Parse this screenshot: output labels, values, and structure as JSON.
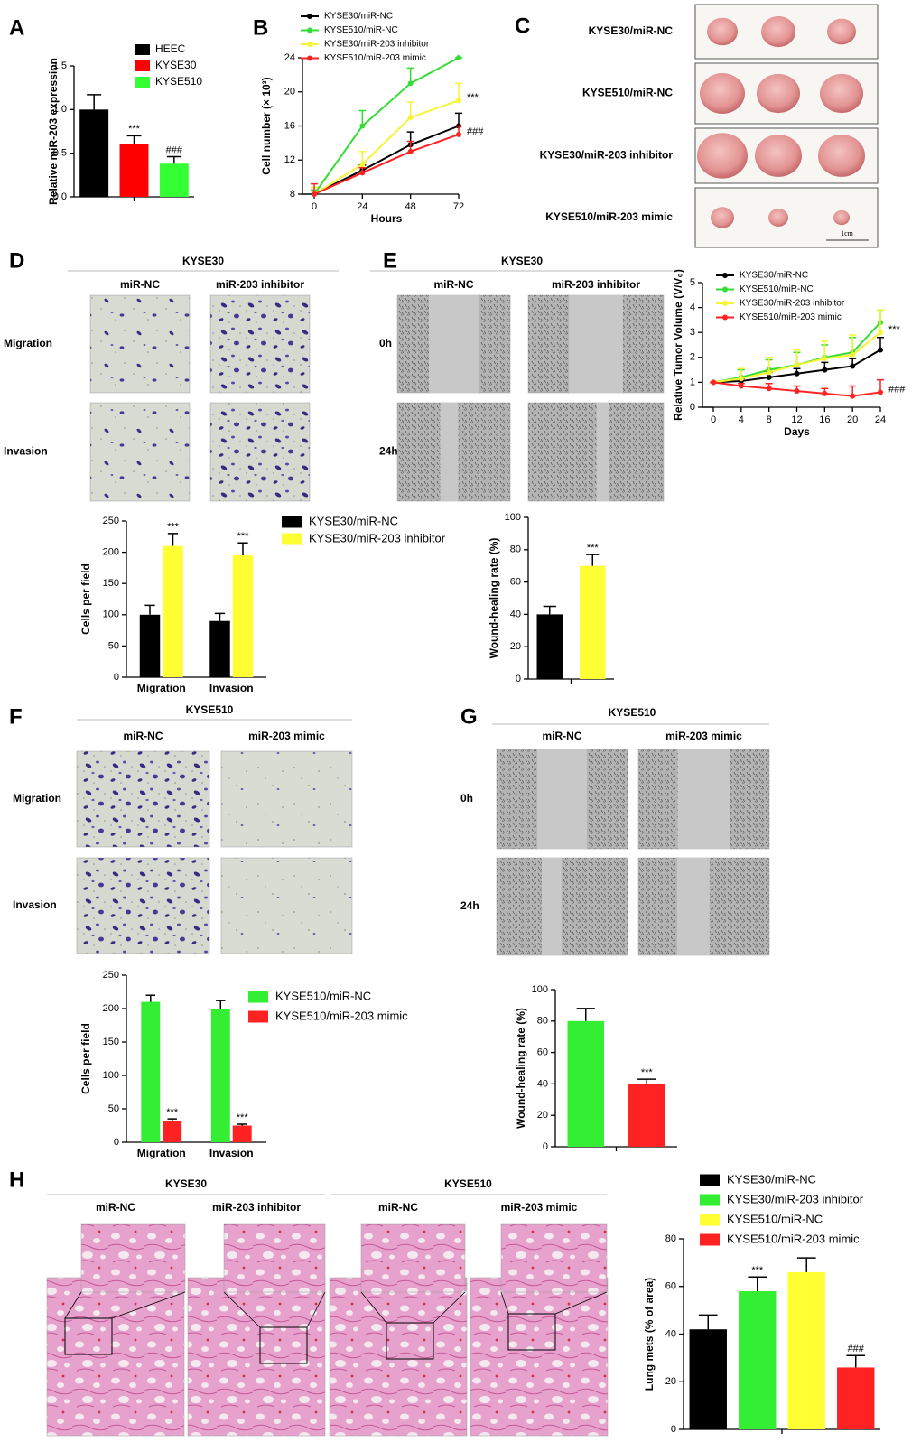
{
  "image_panels": {
    "C": {
      "panel": "C",
      "rows": [
        "KYSE30/miR-NC",
        "KYSE510/miR-NC",
        "KYSE30/miR-203 inhibitor",
        "KYSE510/miR-203 mimic"
      ],
      "scale": "1cm"
    },
    "D": {
      "panel": "D",
      "title": "KYSE30",
      "columns": [
        "miR-NC",
        "miR-203 inhibitor"
      ],
      "rows": [
        "Migration",
        "Invasion"
      ]
    },
    "E": {
      "panel": "E",
      "title": "KYSE30",
      "columns": [
        "miR-NC",
        "miR-203 inhibitor"
      ],
      "rows": [
        "0h",
        "24h"
      ]
    },
    "F": {
      "panel": "F",
      "title": "KYSE510",
      "columns": [
        "miR-NC",
        "miR-203 mimic"
      ],
      "rows": [
        "Migration",
        "Invasion"
      ]
    },
    "G": {
      "panel": "G",
      "title": "KYSE510",
      "columns": [
        "miR-NC",
        "miR-203 mimic"
      ],
      "rows": [
        "0h",
        "24h"
      ]
    },
    "H": {
      "panel": "H",
      "groups": [
        {
          "title": "KYSE30",
          "columns": [
            "miR-NC",
            "miR-203 inhibitor"
          ]
        },
        {
          "title": "KYSE510",
          "columns": [
            "miR-NC",
            "miR-203 mimic"
          ]
        }
      ]
    }
  },
  "chart_data": [
    {
      "type": "bar",
      "panel": "A",
      "ylabel": "Relative miR-203 expression",
      "categories": [
        "HEEC",
        "KYSE30",
        "KYSE510"
      ],
      "values": [
        1.0,
        0.6,
        0.38
      ],
      "errors": [
        0.17,
        0.1,
        0.08
      ],
      "colors": [
        "#000000",
        "#ff0000",
        "#33ff33"
      ],
      "annotations": [
        null,
        "***",
        "###"
      ],
      "legend": true,
      "ylim": [
        0,
        1.5
      ],
      "yticks": [
        {
          "value": 0,
          "label": "0.0"
        },
        0.5,
        {
          "value": 1,
          "label": "1.0"
        },
        1.5
      ]
    },
    {
      "type": "line",
      "panel": "B",
      "xlabel": "Hours",
      "ylabel": "Cell number (× 10³)",
      "x": [
        0,
        24,
        48,
        72
      ],
      "xlim": [
        0,
        72
      ],
      "xticks": [
        0,
        24,
        48,
        72
      ],
      "ylim": [
        8,
        24
      ],
      "yticks": [
        8,
        12,
        16,
        20,
        24
      ],
      "legend": true,
      "series": [
        {
          "name": "KYSE30/miR-NC",
          "color": "#000000",
          "values": [
            8,
            10.8,
            13.8,
            16
          ],
          "errors": [
            0.5,
            0.6,
            1.5,
            1.5
          ]
        },
        {
          "name": "KYSE510/miR-NC",
          "color": "#33dd33",
          "values": [
            8,
            16,
            21,
            24
          ],
          "errors": [
            0.5,
            1.8,
            1.8,
            0
          ]
        },
        {
          "name": "KYSE30/miR-203 inhibitor",
          "color": "#f5f534",
          "values": [
            8,
            11.5,
            17,
            19
          ],
          "errors": [
            0.8,
            1.5,
            1.8,
            2
          ],
          "annotation": "***"
        },
        {
          "name": "KYSE510/miR-203 mimic",
          "color": "#ff2222",
          "values": [
            8,
            10.5,
            13,
            15
          ],
          "errors": [
            1.2,
            0.6,
            1.2,
            1
          ],
          "annotation": "###"
        }
      ]
    },
    {
      "type": "bar",
      "ylabel": "Cells per field",
      "categories": [
        "Migration",
        "Invasion"
      ],
      "legend": true,
      "ylim": [
        0,
        250
      ],
      "yticks": [
        0,
        50,
        100,
        150,
        200,
        250
      ],
      "series": [
        {
          "name": "KYSE30/miR-NC",
          "color": "#000000",
          "values": [
            100,
            90
          ],
          "errors": [
            15,
            12
          ]
        },
        {
          "name": "KYSE30/miR-203 inhibitor",
          "color": "#ffff33",
          "values": [
            210,
            195
          ],
          "errors": [
            20,
            20
          ],
          "annotation": "***"
        }
      ]
    },
    {
      "type": "bar",
      "ylabel": "Wound-healing rate (%)",
      "values": [
        40,
        70
      ],
      "errors": [
        5,
        7
      ],
      "colors": [
        "#000000",
        "#ffff33"
      ],
      "annotations": [
        null,
        "***"
      ],
      "ylim": [
        0,
        100
      ],
      "yticks": [
        0,
        20,
        40,
        60,
        80,
        100
      ]
    },
    {
      "type": "line",
      "xlabel": "Days",
      "ylabel": "Relative Tumor Volume (V/V₀)",
      "x": [
        0,
        4,
        8,
        12,
        16,
        20,
        24
      ],
      "xlim": [
        0,
        24
      ],
      "xticks": [
        0,
        4,
        8,
        12,
        16,
        20,
        24
      ],
      "ylim": [
        0,
        5
      ],
      "yticks": [
        0,
        1,
        2,
        3,
        4,
        5
      ],
      "legend": true,
      "series": [
        {
          "name": "KYSE30/miR-NC",
          "color": "#000000",
          "values": [
            1,
            1.05,
            1.2,
            1.35,
            1.5,
            1.65,
            2.3
          ],
          "errors": [
            0,
            0.1,
            0.2,
            0.2,
            0.3,
            0.3,
            0.5
          ]
        },
        {
          "name": "KYSE510/miR-NC",
          "color": "#33dd33",
          "values": [
            1,
            1.2,
            1.5,
            1.7,
            2,
            2.2,
            3.4
          ],
          "errors": [
            0,
            0.3,
            0.4,
            0.5,
            0.5,
            0.6,
            0.5
          ]
        },
        {
          "name": "KYSE30/miR-203 inhibitor",
          "color": "#f5f534",
          "values": [
            1,
            1.15,
            1.4,
            1.7,
            1.95,
            2.1,
            3.0
          ],
          "errors": [
            0,
            0.4,
            0.6,
            0.6,
            0.7,
            0.8,
            0.9
          ],
          "annotation": "***"
        },
        {
          "name": "KYSE510/miR-203 mimic",
          "color": "#ff2222",
          "values": [
            1,
            0.85,
            0.75,
            0.65,
            0.55,
            0.45,
            0.6
          ],
          "errors": [
            0,
            0.1,
            0.2,
            0.2,
            0.2,
            0.4,
            0.5
          ],
          "annotation": "###"
        }
      ]
    },
    {
      "type": "bar",
      "ylabel": "Cells per field",
      "categories": [
        "Migration",
        "Invasion"
      ],
      "legend": true,
      "ylim": [
        0,
        250
      ],
      "yticks": [
        0,
        50,
        100,
        150,
        200,
        250
      ],
      "series": [
        {
          "name": "KYSE510/miR-NC",
          "color": "#33ee33",
          "values": [
            210,
            200
          ],
          "errors": [
            10,
            12
          ]
        },
        {
          "name": "KYSE510/miR-203 mimic",
          "color": "#ff2222",
          "values": [
            32,
            25
          ],
          "errors": [
            3,
            2
          ],
          "annotation": "***"
        }
      ]
    },
    {
      "type": "bar",
      "ylabel": "Wound-healing rate (%)",
      "values": [
        80,
        40
      ],
      "errors": [
        8,
        3
      ],
      "colors": [
        "#33ee33",
        "#ff2222"
      ],
      "annotations": [
        null,
        "***"
      ],
      "ylim": [
        0,
        100
      ],
      "yticks": [
        0,
        20,
        40,
        60,
        80,
        100
      ]
    },
    {
      "type": "bar",
      "ylabel": "Lung mets (% of area)",
      "categories": [
        "KYSE30/miR-NC",
        "KYSE30/miR-203 inhibitor",
        "KYSE510/miR-NC",
        "KYSE510/miR-203 mimic"
      ],
      "values": [
        42,
        58,
        66,
        26
      ],
      "errors": [
        6,
        6,
        6,
        5
      ],
      "colors": [
        "#000000",
        "#33ee33",
        "#ffff33",
        "#ff2222"
      ],
      "annotations": [
        null,
        "***",
        null,
        "###"
      ],
      "legend": true,
      "ylim": [
        0,
        80
      ],
      "yticks": [
        0,
        20,
        40,
        60,
        80
      ]
    }
  ]
}
